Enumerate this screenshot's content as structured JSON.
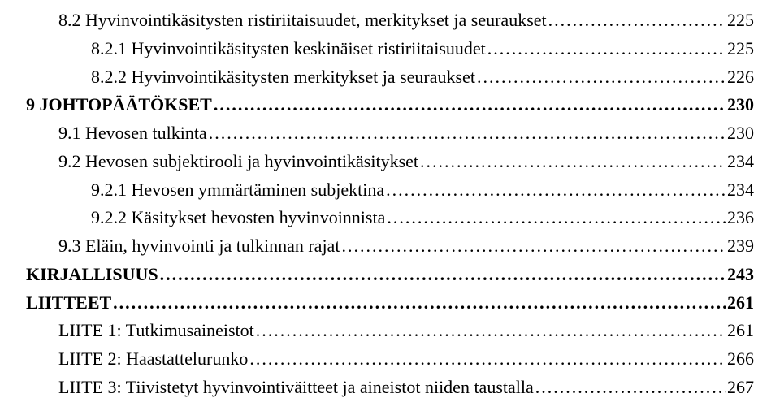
{
  "toc": [
    {
      "level": 1,
      "label": "8.2 Hyvinvointikäsitysten ristiriitaisuudet, merkitykset ja seuraukset",
      "page": "225",
      "bold": false
    },
    {
      "level": 2,
      "label": "8.2.1 Hyvinvointikäsitysten keskinäiset ristiriitaisuudet",
      "page": "225",
      "bold": false
    },
    {
      "level": 2,
      "label": "8.2.2 Hyvinvointikäsitysten merkitykset ja seuraukset",
      "page": "226",
      "bold": false
    },
    {
      "level": 0,
      "label": "9 JOHTOPÄÄTÖKSET",
      "page": "230",
      "bold": true
    },
    {
      "level": 1,
      "label": "9.1 Hevosen tulkinta",
      "page": "230",
      "bold": false
    },
    {
      "level": 1,
      "label": "9.2 Hevosen subjektirooli ja hyvinvointikäsitykset",
      "page": "234",
      "bold": false
    },
    {
      "level": 2,
      "label": "9.2.1 Hevosen ymmärtäminen subjektina",
      "page": "234",
      "bold": false
    },
    {
      "level": 2,
      "label": "9.2.2 Käsitykset hevosten hyvinvoinnista",
      "page": "236",
      "bold": false
    },
    {
      "level": 1,
      "label": "9.3 Eläin, hyvinvointi ja tulkinnan rajat",
      "page": "239",
      "bold": false
    },
    {
      "level": 0,
      "label": "KIRJALLISUUS",
      "page": "243",
      "bold": true
    },
    {
      "level": 0,
      "label": "LIITTEET",
      "page": "261",
      "bold": true
    },
    {
      "level": 1,
      "label": "LIITE 1: Tutkimusaineistot",
      "page": "261",
      "bold": false
    },
    {
      "level": 1,
      "label": "LIITE 2: Haastattelurunko",
      "page": "266",
      "bold": false
    },
    {
      "level": 1,
      "label": "LIITE 3: Tiivistetyt hyvinvointiväitteet ja aineistot niiden taustalla",
      "page": "267",
      "bold": false
    }
  ]
}
